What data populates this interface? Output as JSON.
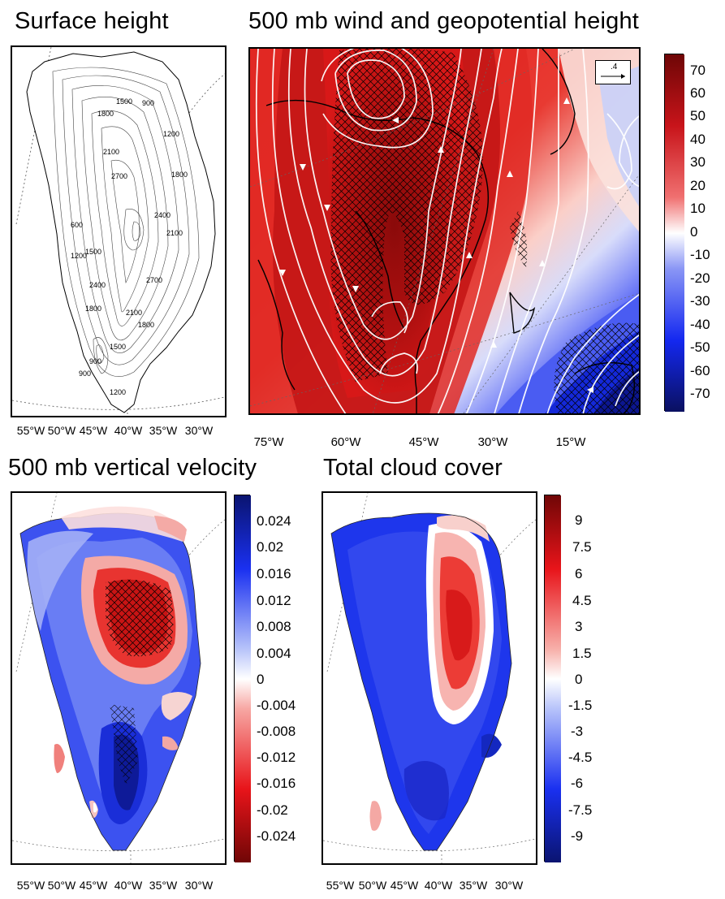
{
  "panels": {
    "surface": {
      "title": "Surface height",
      "contour_labels": [
        "1500",
        "900",
        "1800",
        "1200",
        "2100",
        "2700",
        "2400",
        "1800",
        "1500",
        "2100",
        "2700",
        "2400",
        "1200",
        "1800",
        "1500",
        "900",
        "600",
        "2100",
        "1800",
        "1200",
        "900"
      ]
    },
    "wind": {
      "title": "500 mb wind and geopotential height",
      "vector_key": ".4"
    },
    "velocity": {
      "title": "500 mb vertical velocity"
    },
    "cloud": {
      "title": "Total cloud cover"
    }
  },
  "axes": {
    "top_left_x": [
      "55°W",
      "50°W",
      "45°W",
      "40°W",
      "35°W",
      "30°W"
    ],
    "top_right_x": [
      "75°W",
      "60°W",
      "45°W",
      "30°W",
      "15°W"
    ],
    "bottom_left_x": [
      "55°W",
      "50°W",
      "45°W",
      "40°W",
      "35°W",
      "30°W"
    ],
    "bottom_right_x": [
      "55°W",
      "50°W",
      "45°W",
      "40°W",
      "35°W",
      "30°W"
    ]
  },
  "colorbars": {
    "wind": {
      "labels": [
        "70",
        "60",
        "50",
        "40",
        "30",
        "20",
        "10",
        "0",
        "-10",
        "-20",
        "-30",
        "-40",
        "-50",
        "-60",
        "-70"
      ],
      "range": [
        -70,
        70
      ]
    },
    "velocity": {
      "labels": [
        "0.024",
        "0.02",
        "0.016",
        "0.012",
        "0.008",
        "0.004",
        "0",
        "-0.004",
        "-0.008",
        "-0.012",
        "-0.016",
        "-0.02",
        "-0.024"
      ],
      "range": [
        -0.024,
        0.024
      ]
    },
    "cloud": {
      "labels": [
        "9",
        "7.5",
        "6",
        "4.5",
        "3",
        "1.5",
        "0",
        "-1.5",
        "-3",
        "-4.5",
        "-6",
        "-7.5",
        "-9"
      ],
      "range": [
        -9,
        9
      ]
    }
  },
  "colors": {
    "warm_dark": "#7a0a0a",
    "warm": "#e8141a",
    "neutral": "#ffffff",
    "cool": "#1832f0",
    "cool_dark": "#0c1470"
  }
}
